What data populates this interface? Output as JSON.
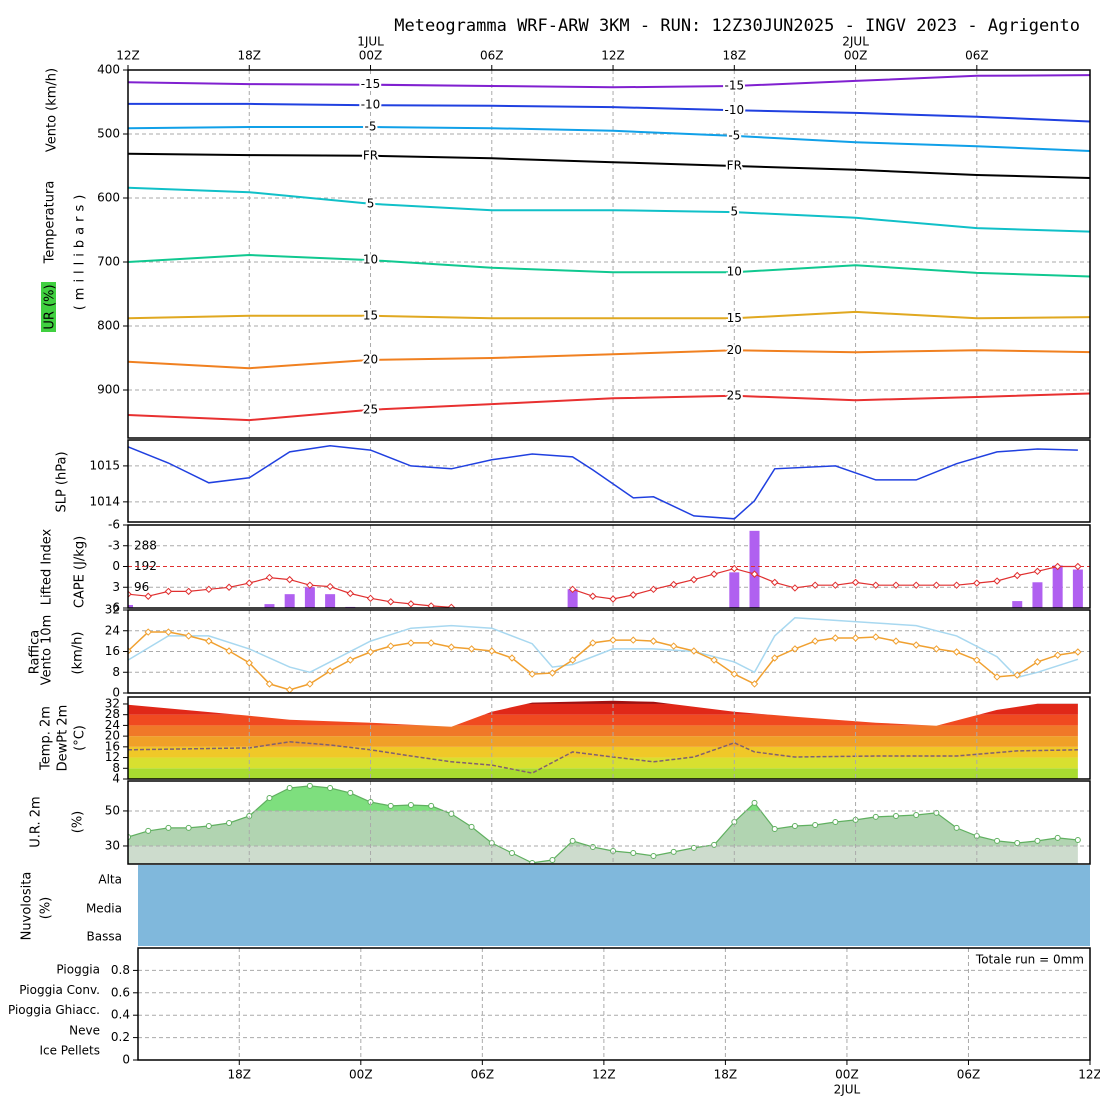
{
  "title": "Meteogramma WRF-ARW 3KM - RUN: 12Z30JUN2025 - INGV 2023 - Agrigento",
  "chart_data": [
    {
      "type": "contour",
      "ylabel": "Vento (km/h)",
      "ylabel2": "Temperatura",
      "ylabel3": "UR (%)",
      "ylabel4": "(millibars)",
      "xlim": [
        0,
        47.6
      ],
      "xticks": [
        {
          "value": 0,
          "label": "12Z"
        },
        {
          "value": 6,
          "label": "18Z"
        },
        {
          "value": 12,
          "label": "00Z"
        },
        {
          "value": 18,
          "label": "06Z"
        },
        {
          "value": 24,
          "label": "12Z"
        },
        {
          "value": 30,
          "label": "18Z"
        },
        {
          "value": 36,
          "label": "00Z"
        },
        {
          "value": 42,
          "label": "06Z"
        }
      ],
      "date_labels": [
        {
          "value": 12,
          "label": "1JUL"
        },
        {
          "value": 36,
          "label": "2JUL"
        }
      ],
      "ylim": [
        400,
        975
      ],
      "inverted": true,
      "yticks": [
        400,
        500,
        600,
        700,
        800,
        900
      ],
      "grid": true,
      "x": [
        0,
        6,
        12,
        18,
        24,
        30,
        36,
        42,
        48
      ],
      "series": [
        {
          "name": "-15",
          "color": "#8020d0",
          "values": [
            419,
            422,
            423,
            425,
            427,
            425,
            417,
            409,
            408
          ]
        },
        {
          "name": "-10",
          "color": "#2040e0",
          "values": [
            453,
            453,
            455,
            456,
            458,
            463,
            467,
            473,
            481
          ]
        },
        {
          "name": "-5",
          "color": "#10a0e8",
          "values": [
            491,
            489,
            489,
            491,
            495,
            503,
            513,
            519,
            527
          ]
        },
        {
          "name": "FR",
          "color": "#000000",
          "values": [
            531,
            533,
            534,
            538,
            544,
            550,
            556,
            564,
            569
          ]
        },
        {
          "name": "5",
          "color": "#10c0c8",
          "values": [
            584,
            591,
            609,
            619,
            619,
            622,
            631,
            647,
            653
          ]
        },
        {
          "name": "10",
          "color": "#10c890",
          "values": [
            700,
            689,
            697,
            709,
            716,
            716,
            705,
            717,
            723
          ]
        },
        {
          "name": "15",
          "color": "#e0a820",
          "values": [
            788,
            784,
            784,
            788,
            788,
            788,
            778,
            788,
            786
          ]
        },
        {
          "name": "20",
          "color": "#f08020",
          "values": [
            856,
            866,
            853,
            850,
            844,
            838,
            841,
            838,
            841
          ]
        },
        {
          "name": "25",
          "color": "#e83030",
          "values": [
            939,
            947,
            931,
            922,
            913,
            909,
            916,
            911,
            905
          ]
        }
      ]
    },
    {
      "type": "line",
      "ylabel": "SLP (hPa)",
      "xlim": [
        0,
        47.6
      ],
      "ylim": [
        1013.44,
        1015.72
      ],
      "yticks": [
        1014,
        1015
      ],
      "color": "#2040e0",
      "x": [
        0,
        2,
        4,
        6,
        8,
        10,
        12,
        14,
        16,
        18,
        20,
        22,
        23,
        25,
        26,
        28,
        30,
        31,
        32,
        35,
        37,
        39,
        41,
        43,
        45,
        47
      ],
      "values": [
        1015.53,
        1015.08,
        1014.53,
        1014.67,
        1015.39,
        1015.56,
        1015.44,
        1015.0,
        1014.92,
        1015.17,
        1015.33,
        1015.25,
        1014.89,
        1014.11,
        1014.14,
        1013.61,
        1013.53,
        1014.03,
        1014.92,
        1015.0,
        1014.61,
        1014.61,
        1015.06,
        1015.39,
        1015.47,
        1015.44
      ]
    },
    {
      "type": "bar_line",
      "ylabel": "Lifted Index",
      "ylabel2": "CAPE (J/kg)",
      "xlim": [
        0,
        47.6
      ],
      "ylim": [
        -6,
        6
      ],
      "inverted": true,
      "yticks": [
        -6,
        -3,
        0,
        3,
        6
      ],
      "y2lim": [
        0,
        384
      ],
      "y2ticks": [
        96,
        192,
        288
      ],
      "reference_line": 0,
      "x": [
        0,
        1,
        2,
        3,
        4,
        5,
        6,
        7,
        8,
        9,
        10,
        11,
        12,
        13,
        14,
        15,
        16,
        17,
        18,
        19,
        20,
        21,
        22,
        23,
        24,
        25,
        26,
        27,
        28,
        29,
        30,
        31,
        32,
        33,
        34,
        35,
        36,
        37,
        38,
        39,
        40,
        41,
        42,
        43,
        44,
        45,
        46,
        47
      ],
      "cape": {
        "axis": "y2",
        "color": "#b060f0",
        "values": [
          14,
          null,
          null,
          null,
          null,
          null,
          null,
          18,
          64,
          96,
          64,
          5,
          null,
          null,
          null,
          null,
          null,
          null,
          null,
          null,
          null,
          null,
          87,
          null,
          null,
          null,
          null,
          null,
          null,
          null,
          165,
          357,
          null,
          null,
          null,
          null,
          null,
          null,
          null,
          null,
          null,
          null,
          null,
          null,
          32,
          119,
          197,
          178
        ]
      },
      "lifted_index": {
        "color": "#e03030",
        "values": [
          4.0,
          4.3,
          3.6,
          3.6,
          3.3,
          3.0,
          2.4,
          1.6,
          1.9,
          2.7,
          2.9,
          3.9,
          4.6,
          5.1,
          5.4,
          5.7,
          5.9,
          null,
          null,
          null,
          null,
          null,
          3.3,
          4.3,
          4.7,
          4.1,
          3.3,
          2.6,
          1.9,
          1.1,
          0.3,
          1.1,
          2.3,
          3.1,
          2.7,
          2.7,
          2.3,
          2.7,
          2.7,
          2.7,
          2.7,
          2.7,
          2.4,
          2.1,
          1.3,
          0.7,
          0,
          0
        ]
      }
    },
    {
      "type": "line",
      "ylabel": "Vento 10m",
      "ylabel2": "Raffica",
      "ylabel3": "(km/h)",
      "xlim": [
        0,
        47.6
      ],
      "ylim": [
        0,
        32
      ],
      "yticks": [
        0,
        8,
        16,
        24,
        32
      ],
      "wind": {
        "color": "#f0a030",
        "x": [
          0,
          1,
          2,
          3,
          4,
          5,
          6,
          7,
          8,
          9,
          10,
          11,
          12,
          13,
          14,
          15,
          16,
          17,
          18,
          19,
          20,
          21,
          22,
          23,
          24,
          25,
          26,
          27,
          28,
          29,
          30,
          31,
          32,
          33,
          34,
          35,
          36,
          37,
          38,
          39,
          40,
          41,
          42,
          43,
          44,
          45,
          46,
          47
        ],
        "values": [
          16.2,
          23.5,
          23.5,
          22,
          20,
          16.2,
          11.6,
          3.5,
          1.2,
          3.5,
          8.5,
          12.7,
          15.8,
          18.1,
          19.3,
          19.3,
          17.7,
          17,
          16.2,
          13.5,
          7.3,
          7.7,
          12.7,
          19.3,
          20.4,
          20.4,
          20,
          18.1,
          16.2,
          12.7,
          7.3,
          3.5,
          13.5,
          17,
          20,
          21.2,
          21.2,
          21.6,
          20,
          18.5,
          17,
          15.8,
          12.7,
          6.2,
          6.9,
          12,
          14.6,
          15.8
        ]
      },
      "gust": {
        "color": "#a8d8f0",
        "x": [
          0,
          2,
          4,
          6,
          8,
          9,
          10,
          12,
          14,
          16,
          18,
          20,
          21,
          22,
          24,
          26,
          28,
          30,
          31,
          32,
          33,
          35,
          37,
          39,
          41,
          43,
          44,
          45,
          47
        ],
        "values": [
          12.7,
          22,
          22,
          17,
          10,
          8,
          12,
          20,
          25,
          26,
          25,
          19,
          10,
          11,
          17,
          17,
          16,
          12,
          8,
          22,
          29,
          28,
          27,
          26,
          22,
          14,
          6,
          8,
          13
        ]
      }
    },
    {
      "type": "area",
      "ylabel": "Temp. 2m",
      "ylabel2": "DewPt 2m",
      "ylabel3": "(°C)",
      "xlim": [
        0,
        47.6
      ],
      "ylim": [
        4,
        34.6
      ],
      "yticks": [
        4,
        8,
        12,
        16,
        20,
        24,
        28,
        32
      ],
      "band_colors": [
        "#a8dc30",
        "#d8e030",
        "#f0c828",
        "#f0a028",
        "#f07828",
        "#f04a20",
        "#e02818",
        "#a01010"
      ],
      "temperature": {
        "x": [
          0,
          6,
          8,
          12,
          16,
          18,
          20,
          24,
          26,
          30,
          33,
          37,
          40,
          43,
          45,
          47
        ],
        "values": [
          31.7,
          27.6,
          26.1,
          25,
          23.5,
          29.1,
          32.5,
          33.2,
          32.8,
          29.1,
          27.2,
          25,
          23.9,
          29.8,
          32.1,
          32.1
        ]
      },
      "dewpoint": {
        "color": "#806070",
        "x": [
          0,
          6,
          8,
          10,
          12,
          14,
          16,
          18,
          20,
          22,
          24,
          26,
          28,
          30,
          31,
          33,
          37,
          41,
          44,
          47
        ],
        "values": [
          14.9,
          15.6,
          17.9,
          16.7,
          14.9,
          12.6,
          10.4,
          9.2,
          6.2,
          14.1,
          12.2,
          10.4,
          12.2,
          17.5,
          14.1,
          12.2,
          12.6,
          12.6,
          14.5,
          14.9
        ]
      }
    },
    {
      "type": "area",
      "ylabel": "U.R. 2m",
      "ylabel2": "(%)",
      "xlim": [
        0,
        47.6
      ],
      "ylim": [
        19.7,
        67.1
      ],
      "yticks": [
        30,
        50
      ],
      "color": "#60b060",
      "band_colors": [
        "#c8d8c8",
        "#a8cfa8",
        "#70dc70"
      ],
      "x": [
        0,
        1,
        2,
        3,
        4,
        5,
        6,
        7,
        8,
        9,
        10,
        11,
        12,
        13,
        14,
        15,
        16,
        17,
        18,
        19,
        20,
        21,
        22,
        23,
        24,
        25,
        26,
        27,
        28,
        29,
        30,
        31,
        32,
        33,
        34,
        35,
        36,
        37,
        38,
        39,
        40,
        41,
        42,
        43,
        44,
        45,
        46,
        47
      ],
      "values": [
        35.1,
        38.6,
        40.3,
        40.3,
        41.4,
        43.1,
        47.1,
        57.4,
        63.1,
        64.3,
        63.1,
        60.3,
        55.1,
        52.9,
        53.4,
        52.9,
        48.3,
        40.9,
        31.7,
        26,
        20.3,
        22,
        32.9,
        29.4,
        27.1,
        26,
        24.3,
        26.6,
        28.9,
        30.6,
        43.7,
        54.6,
        39.7,
        41.4,
        42,
        43.7,
        44.9,
        46.6,
        47.1,
        47.7,
        48.9,
        40.3,
        35.7,
        32.9,
        31.7,
        32.9,
        34.6,
        33.4
      ]
    },
    {
      "type": "cloud",
      "ylabel": "Nuvolosita",
      "ylabel2": "(%)",
      "categories": [
        "Alta",
        "Media",
        "Bassa"
      ],
      "color": "#80b8dc"
    },
    {
      "type": "precip",
      "legend": [
        {
          "name": "Pioggia",
          "color": "#30c030"
        },
        {
          "name": "Pioggia Conv.",
          "color": "#e02020"
        },
        {
          "name": "Pioggia Ghiacc.",
          "color": "#f07820"
        },
        {
          "name": "Neve",
          "color": "#2020e0"
        },
        {
          "name": "Ice Pellets",
          "color": "#20c8d8"
        }
      ],
      "annotation": "Totale run = 0mm",
      "xlim": [
        1,
        48
      ],
      "xticks": [
        {
          "value": 6,
          "label": "18Z"
        },
        {
          "value": 12,
          "label": "00Z"
        },
        {
          "value": 18,
          "label": "06Z"
        },
        {
          "value": 24,
          "label": "12Z"
        },
        {
          "value": 30,
          "label": "18Z"
        },
        {
          "value": 36,
          "label": "00Z"
        },
        {
          "value": 42,
          "label": "06Z"
        },
        {
          "value": 48,
          "label": "12Z"
        }
      ],
      "date_labels": [
        {
          "value": 36,
          "label": "2JUL"
        }
      ],
      "ylim": [
        0,
        1
      ],
      "yticks": [
        0,
        0.2,
        0.4,
        0.6,
        0.8
      ],
      "grid": true
    }
  ]
}
